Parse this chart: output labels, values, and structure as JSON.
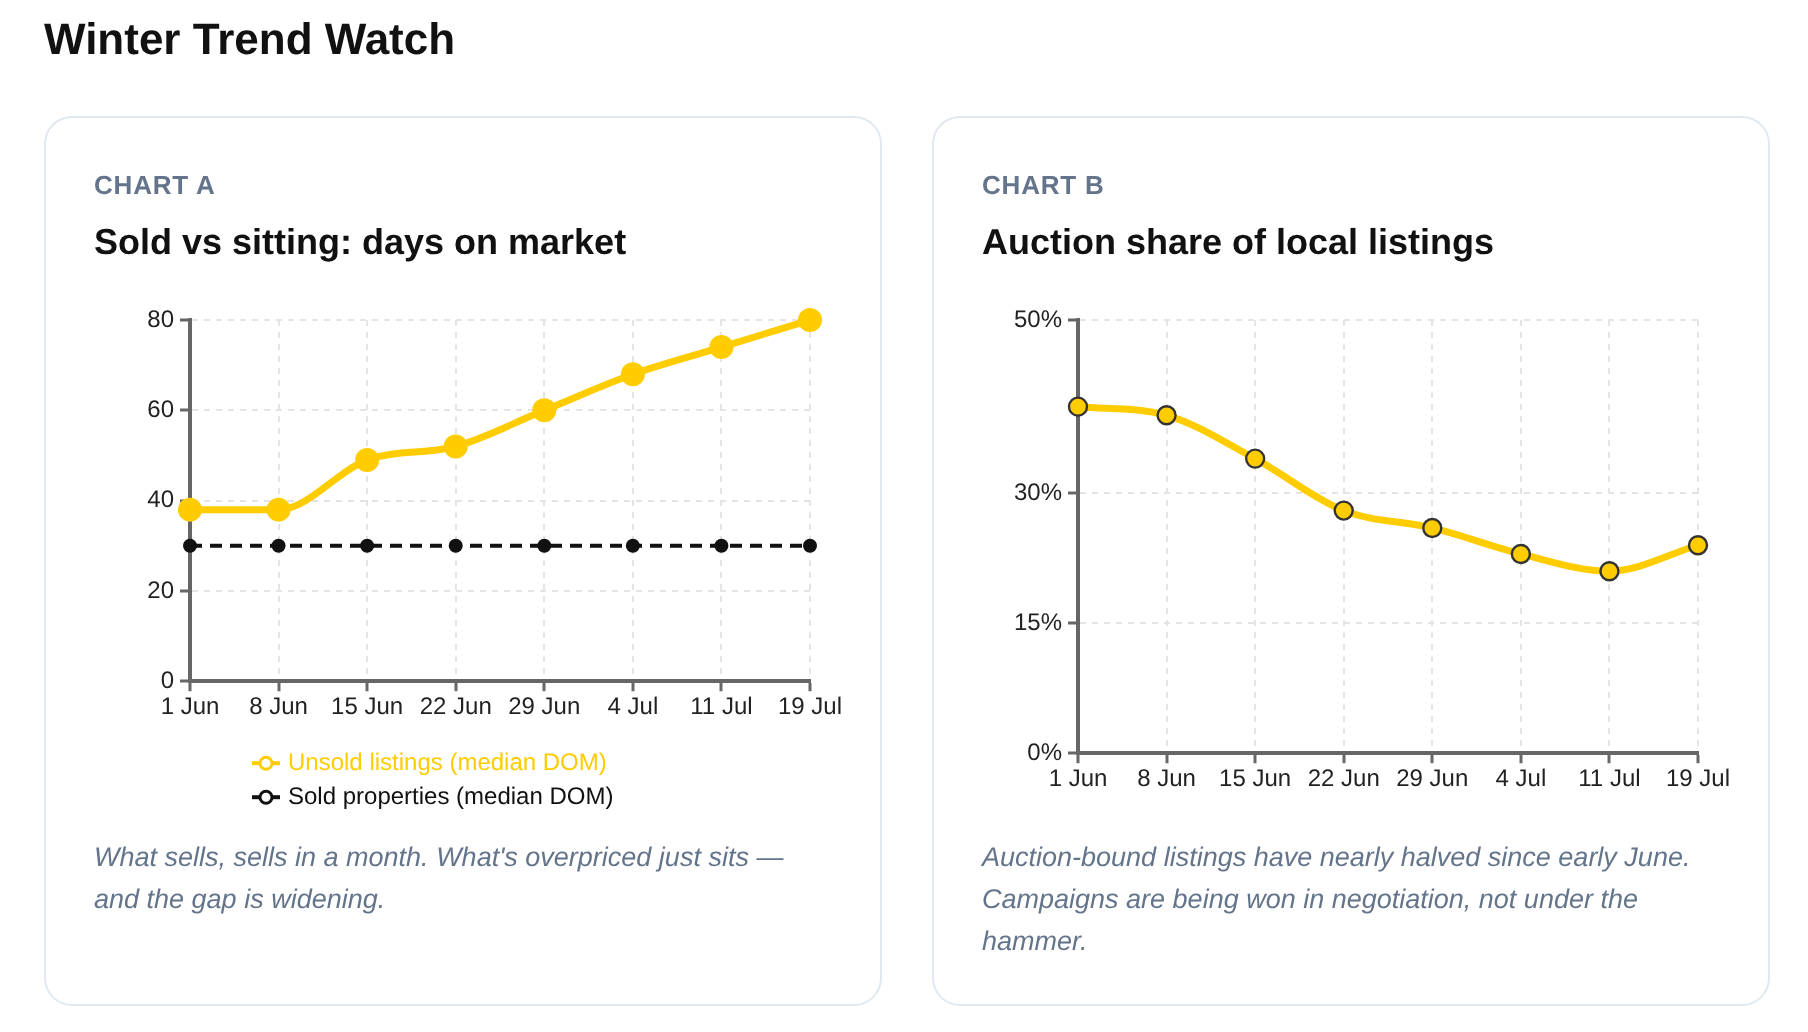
{
  "chart_data": [
    {
      "type": "other",
      "title": "Winter Trend Watch"
    },
    {
      "type": "line",
      "subtitle": "CHART A",
      "title": "Sold vs sitting: days on market",
      "categories": [
        "1 Jun",
        "8 Jun",
        "15 Jun",
        "22 Jun",
        "29 Jun",
        "4 Jul",
        "11 Jul",
        "19 Jul"
      ],
      "series": [
        {
          "name": "Unsold listings (median DOM)",
          "color": "#ffcc00",
          "values": [
            38,
            38,
            49,
            52,
            60,
            68,
            74,
            80
          ]
        },
        {
          "name": "Sold properties (median DOM)",
          "color": "#111111",
          "values": [
            30,
            30,
            30,
            30,
            30,
            30,
            30,
            30
          ],
          "line_style": "dashed"
        }
      ],
      "ylim": [
        0,
        80
      ],
      "yticks": [
        0,
        20,
        40,
        60,
        80
      ],
      "grid": true,
      "legend": "bottom",
      "marker": "circle",
      "annotations": [
        "What sells, sells in a month. What's overpriced just sits — and the gap is widening."
      ]
    },
    {
      "type": "line",
      "subtitle": "CHART B",
      "title": "Auction share of local listings",
      "categories": [
        "1 Jun",
        "8 Jun",
        "15 Jun",
        "22 Jun",
        "29 Jun",
        "4 Jul",
        "11 Jul",
        "19 Jul"
      ],
      "series": [
        {
          "color": "#ffcc00",
          "values": [
            40,
            39,
            34,
            28,
            26,
            23,
            21,
            24
          ]
        }
      ],
      "ylim": [
        0,
        50
      ],
      "yticks": [
        {
          "value": 0,
          "label": "0%"
        },
        {
          "value": 15,
          "label": "15%"
        },
        {
          "value": 30,
          "label": "30%"
        },
        {
          "value": 50,
          "label": "50%"
        }
      ],
      "grid": true,
      "marker": "circle",
      "annotations": [
        "Auction-bound listings have nearly halved since early June. Campaigns are being won in negotiation, not under the hammer."
      ]
    }
  ]
}
